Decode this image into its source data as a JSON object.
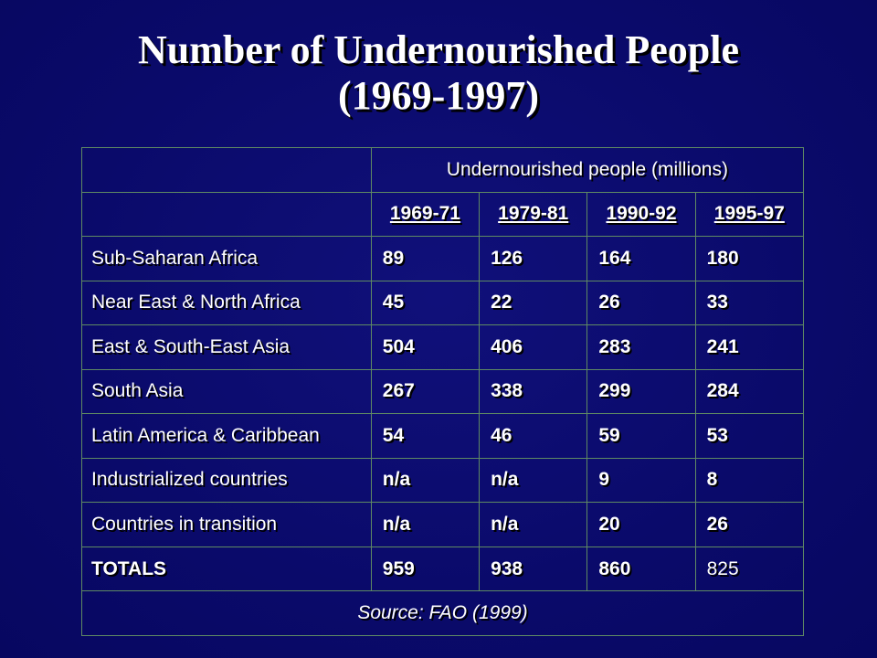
{
  "title": {
    "line1": "Number of Undernourished People",
    "line2": "(1969-1997)"
  },
  "table": {
    "group_header": "Undernourished people (millions)",
    "periods": [
      "1969-71",
      "1979-81",
      "1990-92",
      "1995-97"
    ],
    "rows": [
      {
        "region": "Sub-Saharan Africa",
        "values": [
          "89",
          "126",
          "164",
          "180"
        ]
      },
      {
        "region": "Near East & North Africa",
        "values": [
          "45",
          "22",
          "26",
          "33"
        ]
      },
      {
        "region": "East & South-East Asia",
        "values": [
          "504",
          "406",
          "283",
          "241"
        ]
      },
      {
        "region": "South Asia",
        "values": [
          "267",
          "338",
          "299",
          "284"
        ]
      },
      {
        "region": "Latin America & Caribbean",
        "values": [
          "54",
          "46",
          "59",
          "53"
        ]
      },
      {
        "region": "Industrialized countries",
        "values": [
          "n/a",
          "n/a",
          "9",
          "8"
        ]
      },
      {
        "region": "Countries in transition",
        "values": [
          "n/a",
          "n/a",
          "20",
          "26"
        ]
      }
    ],
    "totals": {
      "label": "TOTALS",
      "values": [
        "959",
        "938",
        "860",
        "825"
      ]
    },
    "source": "Source: FAO (1999)"
  }
}
